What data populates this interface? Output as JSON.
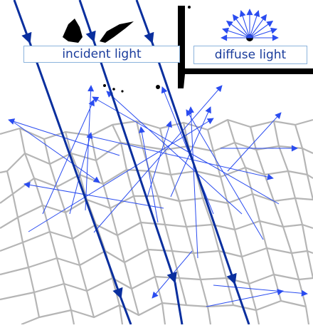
{
  "labels": {
    "incident": "incident light",
    "diffuse": "diffuse light"
  },
  "colors": {
    "incident_ray": "#0a2f9e",
    "scatter_ray": "#2a4cf0",
    "grain": "#b5b5b5",
    "label_text": "#1a3c9c",
    "label_border": "#8cb4dc",
    "ink": "#000000"
  },
  "icons": [
    "incident-light-ray-icon",
    "scattered-light-ray-icon",
    "diffuse-light-symbol-icon",
    "grain-network"
  ]
}
